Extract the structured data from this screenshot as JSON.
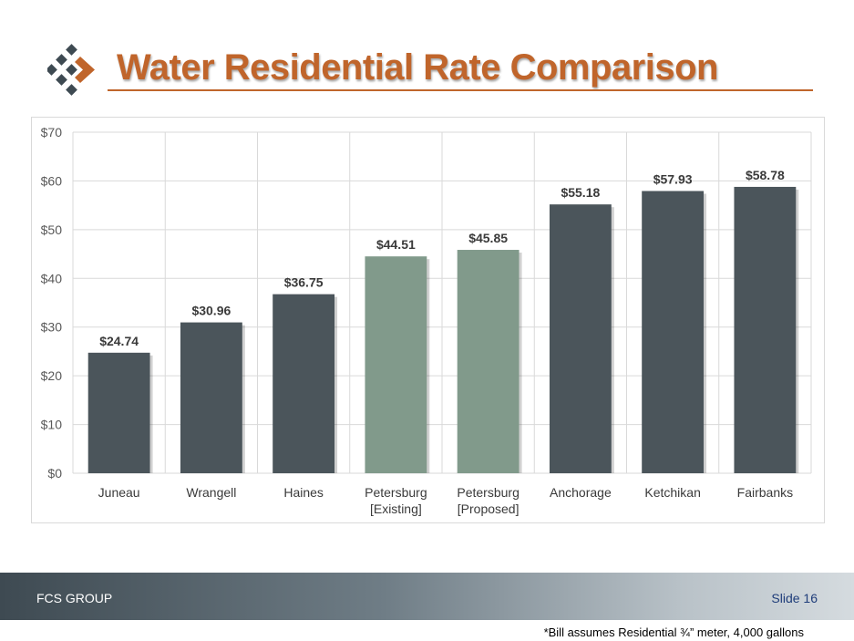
{
  "slide": {
    "title": "Water Residential Rate Comparison",
    "company": "FCS GROUP",
    "slide_number": "Slide 16",
    "footnote": "*Bill assumes Residential ¾” meter, 4,000 gallons"
  },
  "colors": {
    "accent": "#c0652b",
    "bar_dark": "#4b555b",
    "bar_highlight": "#819a8b",
    "logo_dark": "#3e4a52"
  },
  "logo": {
    "icon": "diamond-cluster-logo"
  },
  "chart_data": {
    "type": "bar",
    "categories": [
      [
        "Juneau"
      ],
      [
        "Wrangell"
      ],
      [
        "Haines"
      ],
      [
        "Petersburg",
        "[Existing]"
      ],
      [
        "Petersburg",
        "[Proposed]"
      ],
      [
        "Anchorage"
      ],
      [
        "Ketchikan"
      ],
      [
        "Fairbanks"
      ]
    ],
    "values": [
      24.74,
      30.96,
      36.75,
      44.51,
      45.85,
      55.18,
      57.93,
      58.78
    ],
    "value_labels": [
      "$24.74",
      "$30.96",
      "$36.75",
      "$44.51",
      "$45.85",
      "$55.18",
      "$57.93",
      "$58.78"
    ],
    "highlight": [
      false,
      false,
      false,
      true,
      true,
      false,
      false,
      false
    ],
    "ylim": [
      0,
      70
    ],
    "yticks": [
      0,
      10,
      20,
      30,
      40,
      50,
      60,
      70
    ],
    "ytick_labels": [
      "$0",
      "$10",
      "$20",
      "$30",
      "$40",
      "$50",
      "$60",
      "$70"
    ],
    "grid": true,
    "legend": "none",
    "title": "",
    "xlabel": "",
    "ylabel": ""
  }
}
